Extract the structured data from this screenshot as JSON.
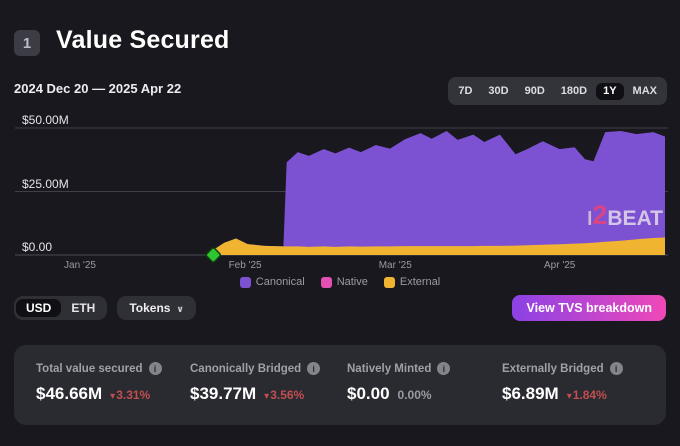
{
  "header": {
    "badge": "1",
    "title": "Value Secured",
    "date_range": "2024 Dec 20 — 2025 Apr 22",
    "ranges": [
      "7D",
      "30D",
      "90D",
      "180D",
      "1Y",
      "MAX"
    ],
    "selected_range": "1Y"
  },
  "watermark": {
    "l": "l",
    "two": "2",
    "beat": "BEAT"
  },
  "chart_data": {
    "type": "area",
    "title": "Value Secured",
    "stacked": true,
    "unit": "USD millions",
    "x_range": [
      "2024-12-20",
      "2025-04-22"
    ],
    "ylim": [
      0,
      50
    ],
    "yticks": [
      {
        "label": "$50.00M",
        "value": 50
      },
      {
        "label": "$25.00M",
        "value": 25
      },
      {
        "label": "$0.00",
        "value": 0
      }
    ],
    "xticks": [
      {
        "label": "Jan '25",
        "t": 0.1
      },
      {
        "label": "Feb '25",
        "t": 0.354
      },
      {
        "label": "Mar '25",
        "t": 0.585
      },
      {
        "label": "Apr '25",
        "t": 0.838
      }
    ],
    "legend": [
      {
        "label": "Canonical",
        "color": "#7d52d2"
      },
      {
        "label": "Native",
        "color": "#e550b4"
      },
      {
        "label": "External",
        "color": "#f0b431"
      }
    ],
    "milestone": {
      "t": 0.305,
      "date": "2025-01-26",
      "value": 0,
      "color": "#2fc52f"
    },
    "series_note": "values in $M; native is 0 for every point",
    "points": [
      {
        "date": "2025-01-26",
        "t": 0.305,
        "canonical": 0,
        "native": 0,
        "external": 2.0
      },
      {
        "date": "2025-01-28",
        "t": 0.322,
        "canonical": 0,
        "native": 0,
        "external": 4.8
      },
      {
        "date": "2025-01-30",
        "t": 0.34,
        "canonical": 0,
        "native": 0,
        "external": 6.5
      },
      {
        "date": "2025-02-01",
        "t": 0.358,
        "canonical": 0,
        "native": 0,
        "external": 4.3
      },
      {
        "date": "2025-02-04",
        "t": 0.384,
        "canonical": 0,
        "native": 0,
        "external": 3.6
      },
      {
        "date": "2025-02-08",
        "t": 0.413,
        "canonical": 0,
        "native": 0,
        "external": 3.4
      },
      {
        "date": "2025-02-09",
        "t": 0.418,
        "canonical": 33.1,
        "native": 0,
        "external": 3.4
      },
      {
        "date": "2025-02-11",
        "t": 0.435,
        "canonical": 37.1,
        "native": 0,
        "external": 3.4
      },
      {
        "date": "2025-02-13",
        "t": 0.452,
        "canonical": 35.8,
        "native": 0,
        "external": 3.2
      },
      {
        "date": "2025-02-16",
        "t": 0.475,
        "canonical": 38.3,
        "native": 0,
        "external": 3.4
      },
      {
        "date": "2025-02-18",
        "t": 0.493,
        "canonical": 36.8,
        "native": 0,
        "external": 3.2
      },
      {
        "date": "2025-02-21",
        "t": 0.514,
        "canonical": 38.9,
        "native": 0,
        "external": 3.4
      },
      {
        "date": "2025-02-23",
        "t": 0.532,
        "canonical": 37.2,
        "native": 0,
        "external": 3.3
      },
      {
        "date": "2025-02-26",
        "t": 0.555,
        "canonical": 39.9,
        "native": 0,
        "external": 3.4
      },
      {
        "date": "2025-03-01",
        "t": 0.577,
        "canonical": 38.5,
        "native": 0,
        "external": 3.4
      },
      {
        "date": "2025-03-04",
        "t": 0.6,
        "canonical": 42.1,
        "native": 0,
        "external": 3.5
      },
      {
        "date": "2025-03-07",
        "t": 0.624,
        "canonical": 44.5,
        "native": 0,
        "external": 3.5
      },
      {
        "date": "2025-03-09",
        "t": 0.641,
        "canonical": 42.3,
        "native": 0,
        "external": 3.5
      },
      {
        "date": "2025-03-12",
        "t": 0.664,
        "canonical": 45.3,
        "native": 0,
        "external": 3.5
      },
      {
        "date": "2025-03-14",
        "t": 0.681,
        "canonical": 41.8,
        "native": 0,
        "external": 3.5
      },
      {
        "date": "2025-03-17",
        "t": 0.705,
        "canonical": 43.9,
        "native": 0,
        "external": 3.5
      },
      {
        "date": "2025-03-19",
        "t": 0.722,
        "canonical": 40.9,
        "native": 0,
        "external": 3.6
      },
      {
        "date": "2025-03-22",
        "t": 0.746,
        "canonical": 43.8,
        "native": 0,
        "external": 3.6
      },
      {
        "date": "2025-03-25",
        "t": 0.77,
        "canonical": 36.0,
        "native": 0,
        "external": 3.7
      },
      {
        "date": "2025-03-27",
        "t": 0.788,
        "canonical": 37.9,
        "native": 0,
        "external": 3.8
      },
      {
        "date": "2025-03-30",
        "t": 0.812,
        "canonical": 40.8,
        "native": 0,
        "external": 4.0
      },
      {
        "date": "2025-04-02",
        "t": 0.838,
        "canonical": 37.5,
        "native": 0,
        "external": 4.2
      },
      {
        "date": "2025-04-05",
        "t": 0.861,
        "canonical": 37.9,
        "native": 0,
        "external": 4.5
      },
      {
        "date": "2025-04-07",
        "t": 0.877,
        "canonical": 33.1,
        "native": 0,
        "external": 4.6
      },
      {
        "date": "2025-04-09",
        "t": 0.89,
        "canonical": 32.1,
        "native": 0,
        "external": 4.8
      },
      {
        "date": "2025-04-11",
        "t": 0.908,
        "canonical": 43.2,
        "native": 0,
        "external": 5.2
      },
      {
        "date": "2025-04-14",
        "t": 0.932,
        "canonical": 43.2,
        "native": 0,
        "external": 5.6
      },
      {
        "date": "2025-04-17",
        "t": 0.956,
        "canonical": 41.4,
        "native": 0,
        "external": 6.2
      },
      {
        "date": "2025-04-20",
        "t": 0.982,
        "canonical": 41.7,
        "native": 0,
        "external": 6.7
      },
      {
        "date": "2025-04-22",
        "t": 1.0,
        "canonical": 39.77,
        "native": 0,
        "external": 6.89
      }
    ]
  },
  "controls": {
    "units": [
      "USD",
      "ETH"
    ],
    "selected_unit": "USD",
    "tokens_label": "Tokens",
    "tvs_button": "View TVS breakdown"
  },
  "stats": {
    "items": [
      {
        "label": "Total value secured",
        "value": "$46.66M",
        "change": "3.31%",
        "trend": "down"
      },
      {
        "label": "Canonically Bridged",
        "value": "$39.77M",
        "change": "3.56%",
        "trend": "down"
      },
      {
        "label": "Natively Minted",
        "value": "$0.00",
        "change": "0.00%",
        "trend": "flat"
      },
      {
        "label": "Externally Bridged",
        "value": "$6.89M",
        "change": "1.84%",
        "trend": "down"
      }
    ]
  }
}
